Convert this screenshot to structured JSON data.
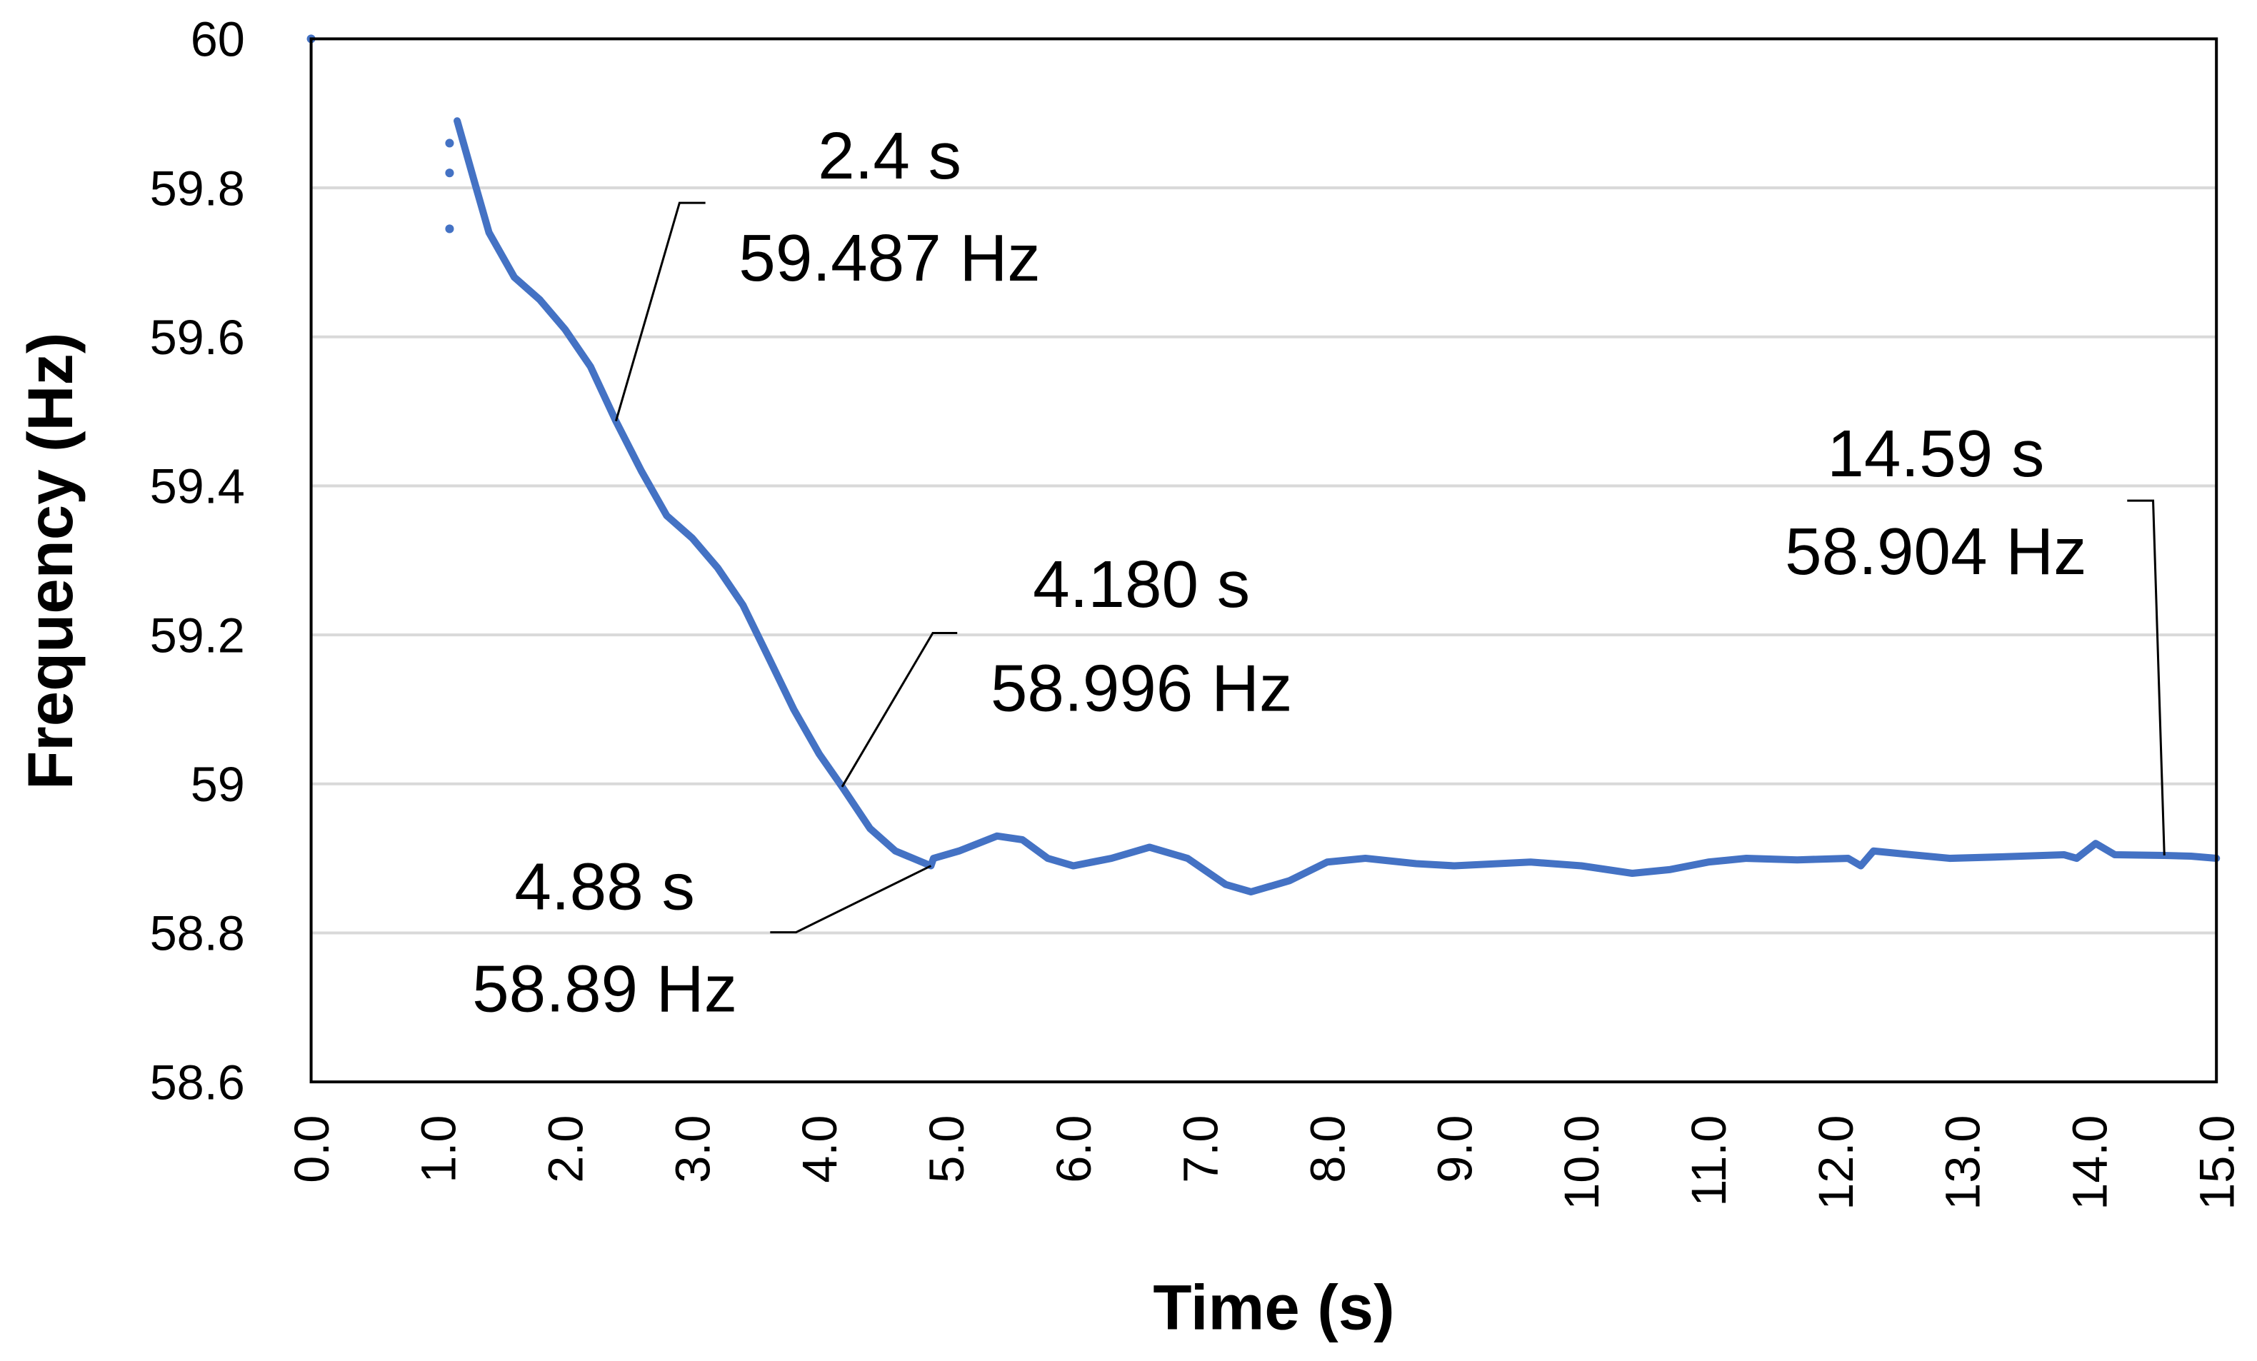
{
  "chart_data": {
    "type": "line",
    "xlabel": "Time (s)",
    "ylabel": "Frequency (Hz)",
    "xlim": [
      0,
      15
    ],
    "ylim": [
      58.6,
      60
    ],
    "xticks": [
      "0.0",
      "1.0",
      "2.0",
      "3.0",
      "4.0",
      "5.0",
      "6.0",
      "7.0",
      "8.0",
      "9.0",
      "10.0",
      "11.0",
      "12.0",
      "13.0",
      "14.0",
      "15.0"
    ],
    "yticks": [
      "58.6",
      "58.8",
      "59",
      "59.2",
      "59.4",
      "59.6",
      "59.8",
      "60"
    ],
    "grid": "horizontal",
    "line_color": "#4472C4",
    "series": [
      {
        "x": [
          1.15,
          1.2,
          1.3,
          1.4,
          1.6,
          1.8,
          2.0,
          2.2,
          2.4,
          2.6,
          2.8,
          3.0,
          3.2,
          3.4,
          3.6,
          3.8,
          4.0,
          4.18,
          4.4,
          4.6,
          4.88,
          4.9,
          5.1,
          5.4,
          5.6,
          5.8,
          6.0,
          6.3,
          6.6,
          6.9,
          7.2,
          7.4,
          7.7,
          8.0,
          8.3,
          8.7,
          9.0,
          9.6,
          10.0,
          10.4,
          10.7,
          11.0,
          11.3,
          11.7,
          12.1,
          12.2,
          12.3,
          12.6,
          12.9,
          13.3,
          13.8,
          13.9,
          14.05,
          14.2,
          14.59,
          14.8,
          15.0
        ],
        "y": [
          59.89,
          59.86,
          59.8,
          59.74,
          59.68,
          59.65,
          59.61,
          59.56,
          59.487,
          59.42,
          59.36,
          59.33,
          59.29,
          59.24,
          59.17,
          59.1,
          59.04,
          58.996,
          58.94,
          58.91,
          58.89,
          58.9,
          58.91,
          58.93,
          58.925,
          58.9,
          58.89,
          58.9,
          58.915,
          58.9,
          58.865,
          58.855,
          58.87,
          58.895,
          58.9,
          58.893,
          58.89,
          58.895,
          58.89,
          58.88,
          58.885,
          58.895,
          58.9,
          58.898,
          58.9,
          58.89,
          58.91,
          58.905,
          58.9,
          58.902,
          58.905,
          58.9,
          58.92,
          58.905,
          58.904,
          58.903,
          58.9
        ]
      }
    ],
    "scatter_points": {
      "x": [
        0,
        1.09,
        1.09,
        1.09
      ],
      "y": [
        60,
        59.86,
        59.82,
        59.745
      ]
    },
    "annotations": [
      {
        "time": "2.4 s",
        "freq": "59.487 Hz",
        "x": 2.4,
        "y": 59.487
      },
      {
        "time": "4.180 s",
        "freq": "58.996 Hz",
        "x": 4.18,
        "y": 58.996
      },
      {
        "time": "4.88 s",
        "freq": "58.89 Hz",
        "x": 4.88,
        "y": 58.89
      },
      {
        "time": "14.59 s",
        "freq": "58.904 Hz",
        "x": 14.59,
        "y": 58.904
      }
    ]
  }
}
